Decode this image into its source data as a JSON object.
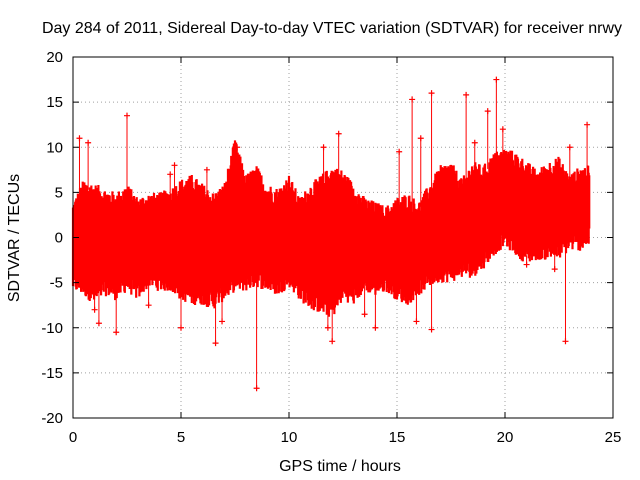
{
  "chart_data": {
    "type": "scatter",
    "title": "Day 284 of 2011, Sidereal Day-to-day VTEC variation (SDTVAR) for receiver nrwy",
    "xlabel": "GPS time / hours",
    "ylabel": "SDTVAR / TECUs",
    "xlim": [
      0,
      25
    ],
    "ylim": [
      -20,
      20
    ],
    "xticks": [
      0,
      5,
      10,
      15,
      20,
      25
    ],
    "yticks": [
      -20,
      -15,
      -10,
      -5,
      0,
      5,
      10,
      15,
      20
    ],
    "grid": true,
    "marker": "+",
    "color": "#ff0000",
    "envelope": {
      "note": "dense per-epoch samples approximated by upper/lower bounds of the point cloud",
      "x": [
        0.0,
        0.5,
        1.0,
        1.5,
        2.0,
        2.5,
        3.0,
        3.5,
        4.0,
        4.5,
        5.0,
        5.5,
        6.0,
        6.5,
        7.0,
        7.5,
        8.0,
        8.5,
        9.0,
        9.5,
        10.0,
        10.5,
        11.0,
        11.5,
        12.0,
        12.5,
        13.0,
        13.5,
        14.0,
        14.5,
        15.0,
        15.5,
        16.0,
        16.5,
        17.0,
        17.5,
        18.0,
        18.5,
        19.0,
        19.5,
        20.0,
        20.5,
        21.0,
        21.5,
        22.0,
        22.5,
        23.0,
        23.5,
        23.9
      ],
      "upper": [
        3.0,
        5.5,
        5.0,
        4.5,
        4.0,
        5.0,
        3.5,
        4.0,
        4.0,
        4.5,
        5.5,
        6.0,
        5.0,
        4.0,
        5.0,
        10.0,
        6.0,
        7.0,
        5.0,
        4.5,
        6.0,
        3.5,
        5.0,
        6.0,
        7.0,
        6.5,
        5.0,
        3.5,
        3.0,
        2.5,
        3.5,
        4.0,
        3.0,
        5.0,
        7.0,
        7.5,
        5.5,
        7.5,
        7.0,
        8.5,
        9.0,
        8.5,
        7.5,
        6.5,
        7.5,
        8.0,
        6.0,
        7.0,
        7.0
      ],
      "lower": [
        -5.0,
        -5.5,
        -6.5,
        -5.5,
        -6.0,
        -5.0,
        -6.0,
        -4.5,
        -5.0,
        -5.0,
        -6.0,
        -6.5,
        -6.5,
        -7.0,
        -6.0,
        -5.0,
        -5.0,
        -4.5,
        -5.0,
        -5.5,
        -4.5,
        -6.0,
        -7.0,
        -7.5,
        -8.0,
        -6.0,
        -6.5,
        -5.0,
        -5.5,
        -5.0,
        -6.0,
        -6.5,
        -5.5,
        -4.5,
        -4.0,
        -4.0,
        -3.5,
        -3.5,
        -2.5,
        -1.0,
        0.0,
        -1.0,
        -2.0,
        -1.5,
        -1.5,
        -1.5,
        -0.5,
        -0.5,
        0.0
      ]
    },
    "outliers": [
      {
        "x": 0.3,
        "y": 11.0
      },
      {
        "x": 0.7,
        "y": 10.5
      },
      {
        "x": 1.0,
        "y": -8.0
      },
      {
        "x": 1.2,
        "y": -9.5
      },
      {
        "x": 2.0,
        "y": -10.5
      },
      {
        "x": 2.5,
        "y": 13.5
      },
      {
        "x": 3.5,
        "y": -7.5
      },
      {
        "x": 4.5,
        "y": 7.0
      },
      {
        "x": 4.7,
        "y": 8.0
      },
      {
        "x": 5.0,
        "y": -10.0
      },
      {
        "x": 6.2,
        "y": 7.5
      },
      {
        "x": 6.6,
        "y": -11.7
      },
      {
        "x": 6.9,
        "y": -9.3
      },
      {
        "x": 7.6,
        "y": 10.0
      },
      {
        "x": 8.5,
        "y": -16.7
      },
      {
        "x": 11.6,
        "y": 10.0
      },
      {
        "x": 11.8,
        "y": -10.0
      },
      {
        "x": 12.0,
        "y": -11.5
      },
      {
        "x": 12.3,
        "y": 11.5
      },
      {
        "x": 13.5,
        "y": -8.5
      },
      {
        "x": 14.0,
        "y": -10.0
      },
      {
        "x": 15.1,
        "y": 9.5
      },
      {
        "x": 15.7,
        "y": 15.3
      },
      {
        "x": 15.9,
        "y": -9.3
      },
      {
        "x": 16.1,
        "y": 11.0
      },
      {
        "x": 16.6,
        "y": 16.0
      },
      {
        "x": 16.6,
        "y": -10.2
      },
      {
        "x": 18.2,
        "y": 15.8
      },
      {
        "x": 18.6,
        "y": 10.5
      },
      {
        "x": 19.2,
        "y": 14.0
      },
      {
        "x": 19.6,
        "y": 17.5
      },
      {
        "x": 19.9,
        "y": 12.0
      },
      {
        "x": 21.0,
        "y": -3.0
      },
      {
        "x": 22.3,
        "y": -3.5
      },
      {
        "x": 22.8,
        "y": -11.5
      },
      {
        "x": 23.0,
        "y": 10.0
      },
      {
        "x": 23.8,
        "y": 12.5
      }
    ]
  }
}
